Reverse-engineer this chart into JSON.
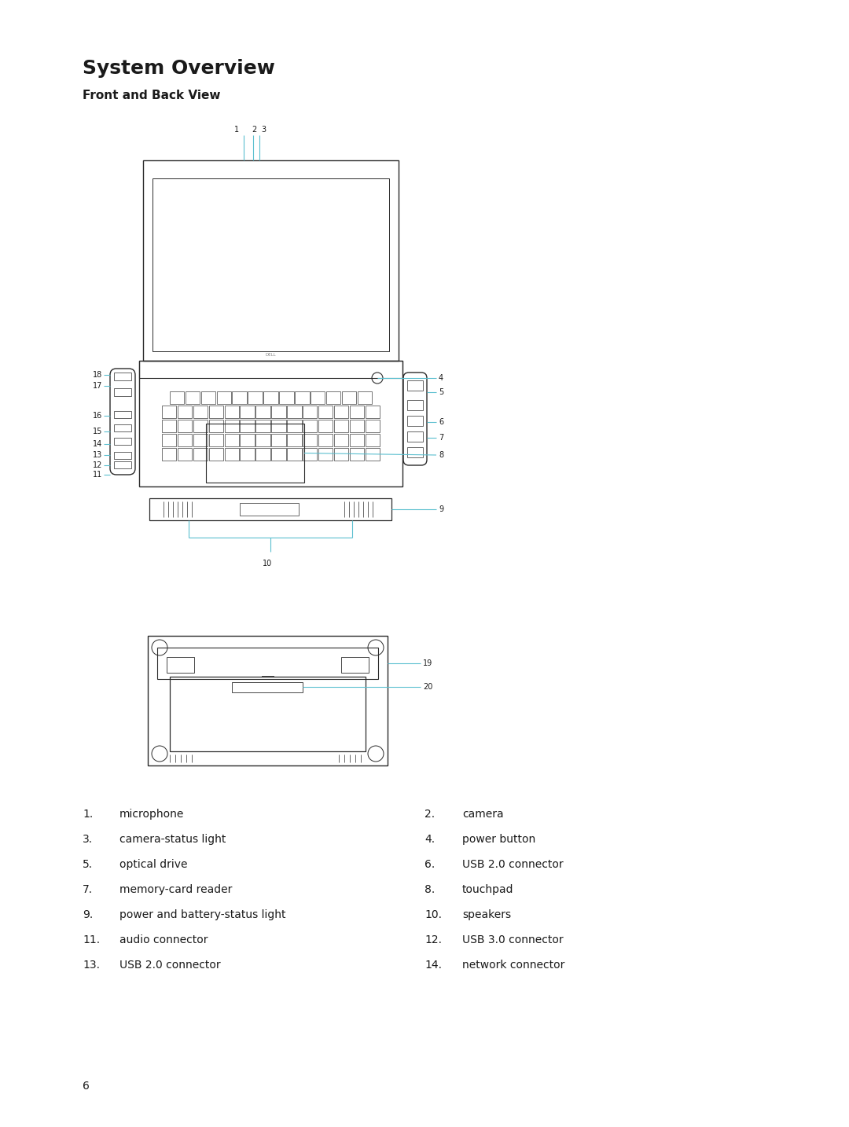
{
  "title": "System Overview",
  "subtitle": "Front and Back View",
  "bg_color": "#ffffff",
  "line_color": "#2a2a2a",
  "callout_color": "#5bbfcf",
  "page_number": "6",
  "legend_left": [
    [
      "1.",
      "microphone"
    ],
    [
      "3.",
      "camera-status light"
    ],
    [
      "5.",
      "optical drive"
    ],
    [
      "7.",
      "memory-card reader"
    ],
    [
      "9.",
      "power and battery-status light"
    ],
    [
      "11.",
      "audio connector"
    ],
    [
      "13.",
      "USB 2.0 connector"
    ]
  ],
  "legend_right": [
    [
      "2.",
      "camera"
    ],
    [
      "4.",
      "power button"
    ],
    [
      "6.",
      "USB 2.0 connector"
    ],
    [
      "8.",
      "touchpad"
    ],
    [
      "10.",
      "speakers"
    ],
    [
      "12.",
      "USB 3.0 connector"
    ],
    [
      "14.",
      "network connector"
    ]
  ]
}
